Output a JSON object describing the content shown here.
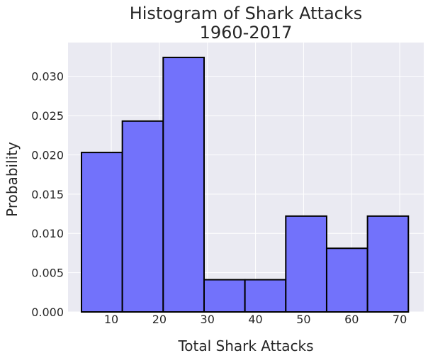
{
  "chart_data": {
    "type": "bar",
    "title": "Histogram of Shark Attacks",
    "subtitle": "1960-2017",
    "xlabel": "Total Shark Attacks",
    "ylabel": "Probability",
    "xlim": [
      1,
      75
    ],
    "ylim": [
      0,
      0.0343
    ],
    "xticks": [
      10,
      20,
      30,
      40,
      50,
      60,
      70
    ],
    "yticks": [
      "0.000",
      "0.005",
      "0.010",
      "0.015",
      "0.020",
      "0.025",
      "0.030"
    ],
    "bins": [
      {
        "start": 3.8,
        "end": 12.3,
        "value": 0.0203
      },
      {
        "start": 12.3,
        "end": 20.8,
        "value": 0.0243
      },
      {
        "start": 20.8,
        "end": 29.3,
        "value": 0.0324
      },
      {
        "start": 29.3,
        "end": 37.8,
        "value": 0.0041
      },
      {
        "start": 37.8,
        "end": 46.3,
        "value": 0.0041
      },
      {
        "start": 46.3,
        "end": 54.8,
        "value": 0.0122
      },
      {
        "start": 54.8,
        "end": 63.3,
        "value": 0.0081
      },
      {
        "start": 63.3,
        "end": 71.8,
        "value": 0.0122
      }
    ],
    "grid": true,
    "colors": {
      "bar_fill": "#7272fb",
      "bar_edge": "#000000",
      "plot_background": "#eaeaf2",
      "grid": "#ffffff"
    }
  }
}
